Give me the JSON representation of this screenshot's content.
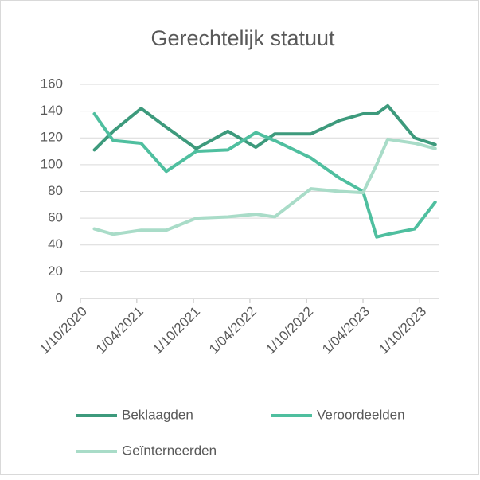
{
  "chart_data": {
    "type": "line",
    "title": "Gerechtelijk statuut",
    "x": [
      "2020-11-15",
      "2021-01-15",
      "2021-04-15",
      "2021-07-05",
      "2021-10-10",
      "2022-01-20",
      "2022-04-20",
      "2022-06-20",
      "2022-10-15",
      "2023-01-15",
      "2023-04-01",
      "2023-05-15",
      "2023-06-20",
      "2023-09-15",
      "2023-11-20"
    ],
    "series": [
      {
        "name": "Beklaagden",
        "color": "#3d9a7c",
        "values": [
          111,
          125,
          142,
          128,
          112,
          125,
          113,
          123,
          123,
          133,
          138,
          138,
          144,
          120,
          115
        ]
      },
      {
        "name": "Veroordeelden",
        "color": "#4fbf9f",
        "values": [
          138,
          118,
          116,
          95,
          110,
          111,
          124,
          118,
          105,
          90,
          80,
          46,
          48,
          52,
          72
        ]
      },
      {
        "name": "Geïnterneerden",
        "color": "#a9dcc8",
        "values": [
          52,
          48,
          51,
          51,
          60,
          61,
          63,
          61,
          82,
          80,
          79,
          100,
          119,
          116,
          112
        ]
      }
    ],
    "xlim": [
      "2020-10-01",
      "2023-12-01"
    ],
    "xticks": [
      {
        "value": "2020-10-01",
        "label": "1/10/2020"
      },
      {
        "value": "2021-04-01",
        "label": "1/04/2021"
      },
      {
        "value": "2021-10-01",
        "label": "1/10/2021"
      },
      {
        "value": "2022-04-01",
        "label": "1/04/2022"
      },
      {
        "value": "2022-10-01",
        "label": "1/10/2022"
      },
      {
        "value": "2023-04-01",
        "label": "1/04/2023"
      },
      {
        "value": "2023-10-01",
        "label": "1/10/2023"
      }
    ],
    "ylim": [
      0,
      160
    ],
    "yticks": [
      0,
      20,
      40,
      60,
      80,
      100,
      120,
      140,
      160
    ],
    "grid": true
  }
}
